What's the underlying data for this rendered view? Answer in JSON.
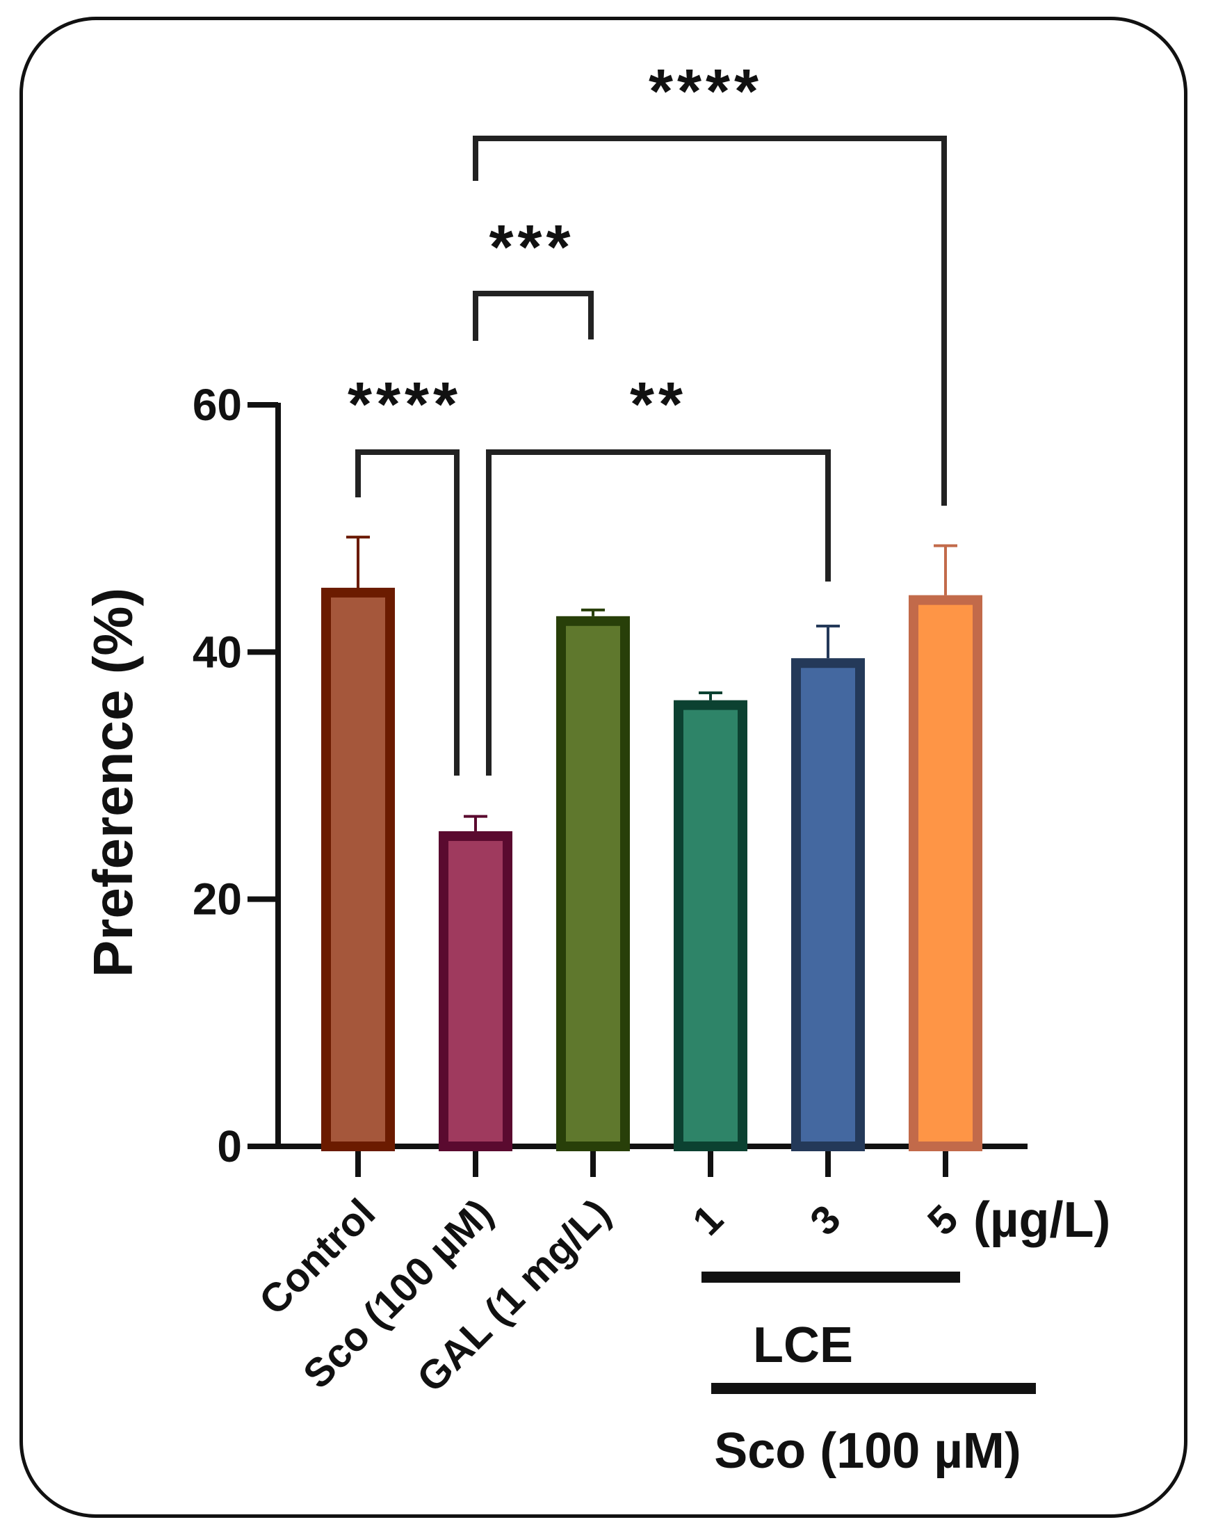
{
  "chart_data": {
    "type": "bar",
    "ylabel": "Preference (%)",
    "ylim": [
      0,
      60
    ],
    "yticks": [
      0,
      20,
      40,
      60
    ],
    "grid": false,
    "categories": [
      "Control",
      "Sco (100 µM)",
      "GAL (1 mg/L)",
      "1",
      "3",
      "5"
    ],
    "values": [
      45.2,
      25.5,
      42.9,
      36.1,
      39.5,
      44.6
    ],
    "errors": [
      4.1,
      1.2,
      0.5,
      0.6,
      2.6,
      4.0
    ],
    "fill_colors": [
      "#a5573b",
      "#9f3a5e",
      "#5f782d",
      "#2e8468",
      "#4468a0",
      "#fe9546"
    ],
    "edge_colors": [
      "#6b1b00",
      "#5a0a2f",
      "#283f09",
      "#0c4131",
      "#243959",
      "#c26a4a"
    ],
    "unit_label": "(µg/L)",
    "group_labels": {
      "lce": "LCE",
      "sco": "Sco (100 µM)"
    },
    "significance": [
      {
        "from": 0,
        "to": 1,
        "label": "****"
      },
      {
        "from": 1,
        "to": 4,
        "label": "**"
      },
      {
        "from": 1,
        "to": 2,
        "label": "***"
      },
      {
        "from": 1,
        "to": 5,
        "label": "****"
      }
    ]
  }
}
